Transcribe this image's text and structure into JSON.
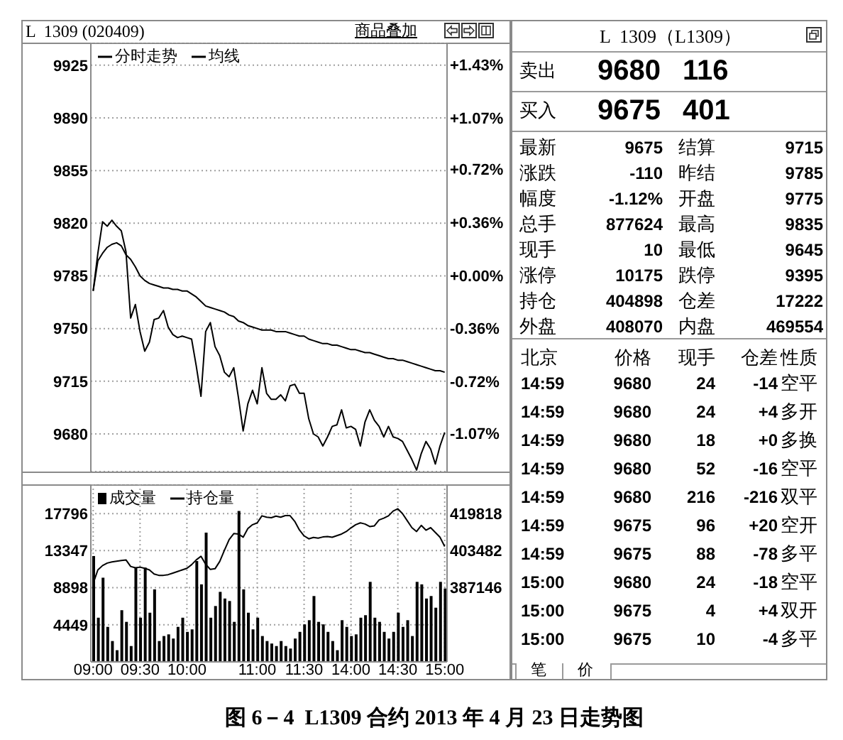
{
  "chart_data": [
    {
      "type": "line",
      "title": "L  1309 (020409)",
      "annotations": [
        "商品叠加",
        "图 6－4  L1309 合约 2013 年 4 月 23 日走势图"
      ],
      "categories": [
        null,
        null,
        null,
        null,
        null,
        null,
        null,
        null,
        null,
        null,
        null,
        null,
        null,
        null,
        null,
        null,
        null,
        null,
        null,
        null,
        null,
        null,
        null,
        null,
        null,
        null,
        null,
        null,
        null,
        null,
        null,
        null,
        null,
        null,
        null,
        null,
        null,
        null,
        null,
        null,
        null,
        null,
        null,
        null,
        null,
        null,
        null,
        null,
        null,
        null,
        null,
        null,
        null,
        null,
        null,
        null,
        null,
        null,
        null,
        null,
        null,
        null,
        null,
        null,
        null,
        null,
        null,
        null,
        null,
        null,
        null,
        null,
        null,
        null,
        null,
        null
      ],
      "series": [
        {
          "name": "分时走势",
          "color": "#000000",
          "values": [
            9775,
            9800,
            9821,
            9818,
            9822,
            9818,
            9815,
            9801,
            9757,
            9766,
            9748,
            9735,
            9741,
            9756,
            9757,
            9762,
            9751,
            9746,
            9744,
            9745,
            9744,
            9743,
            9725,
            9705,
            9748,
            9754,
            9738,
            9732,
            9721,
            9718,
            9724,
            9704,
            9682,
            9700,
            9709,
            9700,
            9724,
            9707,
            9703,
            9703,
            9706,
            9702,
            9712,
            9713,
            9707,
            9707,
            9690,
            9680,
            9678,
            9672,
            9678,
            9685,
            9686,
            9696,
            9684,
            9685,
            9683,
            9672,
            9688,
            9696,
            9689,
            9685,
            9678,
            9685,
            9678,
            9677,
            9675,
            9669,
            9663,
            9656,
            9667,
            9675,
            9670,
            9660,
            9672,
            9681
          ]
        },
        {
          "name": "均线",
          "color": "#000000",
          "values": [
            9775,
            9795,
            9800,
            9804,
            9806,
            9807,
            9805,
            9799,
            9796,
            9791,
            9785,
            9782,
            9780,
            9779,
            9778,
            9777,
            9777,
            9776,
            9776,
            9775,
            9775,
            9773,
            9771,
            9768,
            9765,
            9764,
            9763,
            9762,
            9761,
            9759,
            9758,
            9755,
            9754,
            9752,
            9751,
            9750,
            9749,
            9749,
            9749,
            9748,
            9748,
            9748,
            9747,
            9746,
            9745,
            9745,
            9743,
            9742,
            9741,
            9740,
            9740,
            9739,
            9739,
            9738,
            9737,
            9736,
            9736,
            9735,
            9734,
            9734,
            9733,
            9732,
            9731,
            9730,
            9730,
            9729,
            9729,
            9728,
            9727,
            9726,
            9725,
            9724,
            9723,
            9722,
            9722,
            9721
          ]
        }
      ],
      "ylim": [
        9655,
        9940
      ],
      "yticks": [
        9680,
        9715,
        9750,
        9785,
        9820,
        9855,
        9890,
        9925
      ],
      "y2lim": [
        -1.33,
        1.58
      ],
      "y2ticks": [
        {
          "value": 1.43,
          "label": "+1.43%"
        },
        {
          "value": 1.07,
          "label": "+1.07%"
        },
        {
          "value": 0.72,
          "label": "+0.72%"
        },
        {
          "value": 0.36,
          "label": "+0.36%"
        },
        {
          "value": 0,
          "label": "+0.00%"
        },
        {
          "value": -0.36,
          "label": "-0.36%"
        },
        {
          "value": -0.72,
          "label": "-0.72%"
        },
        {
          "value": -1.07,
          "label": "-1.07%"
        }
      ],
      "grid": true,
      "legend": "top left",
      "tick_labels": "y"
    },
    {
      "type": "bar",
      "categories": [
        "09:00",
        null,
        null,
        null,
        null,
        null,
        null,
        null,
        null,
        null,
        "09:30",
        null,
        null,
        null,
        null,
        null,
        null,
        null,
        null,
        null,
        "10:00",
        null,
        null,
        null,
        null,
        null,
        null,
        null,
        null,
        null,
        null,
        null,
        null,
        null,
        null,
        "11:00",
        null,
        null,
        null,
        null,
        null,
        null,
        null,
        null,
        null,
        "11:30",
        null,
        null,
        null,
        null,
        null,
        null,
        null,
        null,
        null,
        "14:00",
        null,
        null,
        null,
        null,
        null,
        null,
        null,
        null,
        null,
        "14:30",
        null,
        null,
        null,
        null,
        null,
        null,
        null,
        null,
        null,
        "15:00"
      ],
      "series": [
        {
          "name": "成交量",
          "type": "bar",
          "color": "#000000",
          "values": [
            12700,
            5300,
            10100,
            4200,
            2500,
            1400,
            6200,
            4800,
            1900,
            11300,
            5300,
            11300,
            5900,
            8700,
            2500,
            3100,
            3300,
            2800,
            4200,
            5300,
            3600,
            3900,
            12100,
            9300,
            15500,
            5300,
            6700,
            8400,
            7600,
            7300,
            4800,
            18100,
            8700,
            5900,
            3900,
            5300,
            3100,
            2500,
            2200,
            1900,
            2500,
            1900,
            1600,
            2800,
            3600,
            4500,
            5000,
            7900,
            4800,
            4500,
            3600,
            2500,
            1400,
            5000,
            4200,
            3100,
            3300,
            5300,
            5600,
            9600,
            5300,
            4800,
            3600,
            2800,
            3600,
            5900,
            4200,
            5000,
            3100,
            9600,
            9300,
            7600,
            7900,
            6500,
            9600,
            8800
          ]
        },
        {
          "name": "持仓量",
          "type": "line",
          "axis": "y2",
          "color": "#000000",
          "values": [
            389000,
            395000,
            396900,
            398000,
            398500,
            398800,
            399100,
            399400,
            396500,
            395900,
            396200,
            395700,
            395000,
            393200,
            392600,
            392600,
            392900,
            393600,
            394300,
            395000,
            395700,
            397300,
            399400,
            401000,
            397500,
            395200,
            395500,
            398700,
            403600,
            408300,
            411000,
            410800,
            409400,
            413200,
            414900,
            415700,
            418800,
            418200,
            418000,
            418700,
            418200,
            418900,
            418900,
            416400,
            412600,
            410000,
            408700,
            409300,
            409000,
            409500,
            409700,
            409400,
            410100,
            410800,
            411900,
            413500,
            414900,
            415700,
            415200,
            414100,
            414400,
            417000,
            417800,
            418800,
            420900,
            421900,
            419800,
            416700,
            413600,
            411900,
            414600,
            412500,
            413600,
            411500,
            409400,
            405300
          ]
        }
      ],
      "ylim": [
        0,
        21300
      ],
      "yticks": [
        4449,
        8898,
        13347,
        17796
      ],
      "y2lim": [
        354474,
        432684
      ],
      "y2ticks": [
        387146,
        403482,
        419818
      ],
      "grid": true,
      "legend": "top left"
    },
    {
      "type": "other",
      "title": "L  1309（L1309）",
      "annotations": [
        "卖出",
        "9680",
        "116",
        "买入",
        "9675",
        "401",
        "最新",
        "9675",
        "结算",
        "9715",
        "涨跌",
        "-110",
        "昨结",
        "9785",
        "幅度",
        "-1.12%",
        "开盘",
        "9775",
        "总手",
        "877624",
        "最高",
        "9835",
        "现手",
        "10",
        "最低",
        "9645",
        "涨停",
        "10175",
        "跌停",
        "9395",
        "持仓",
        "404898",
        "仓差",
        "17222",
        "外盘",
        "408070",
        "内盘",
        "469554",
        "北京",
        "价格",
        "现手",
        "仓差",
        "性质",
        "14:59",
        "9680",
        "24",
        "-14",
        "空平",
        "14:59",
        "9680",
        "24",
        "+4",
        "多开",
        "14:59",
        "9680",
        "18",
        "+0",
        "多换",
        "14:59",
        "9680",
        "52",
        "-16",
        "空平",
        "14:59",
        "9680",
        "216",
        "-216",
        "双平",
        "14:59",
        "9675",
        "96",
        "+20",
        "空开",
        "14:59",
        "9675",
        "88",
        "-78",
        "多平",
        "15:00",
        "9680",
        "24",
        "-18",
        "空平",
        "15:00",
        "9675",
        "4",
        "+4",
        "双开",
        "15:00",
        "9675",
        "10",
        "-4",
        "多平",
        "笔",
        "价"
      ]
    }
  ]
}
